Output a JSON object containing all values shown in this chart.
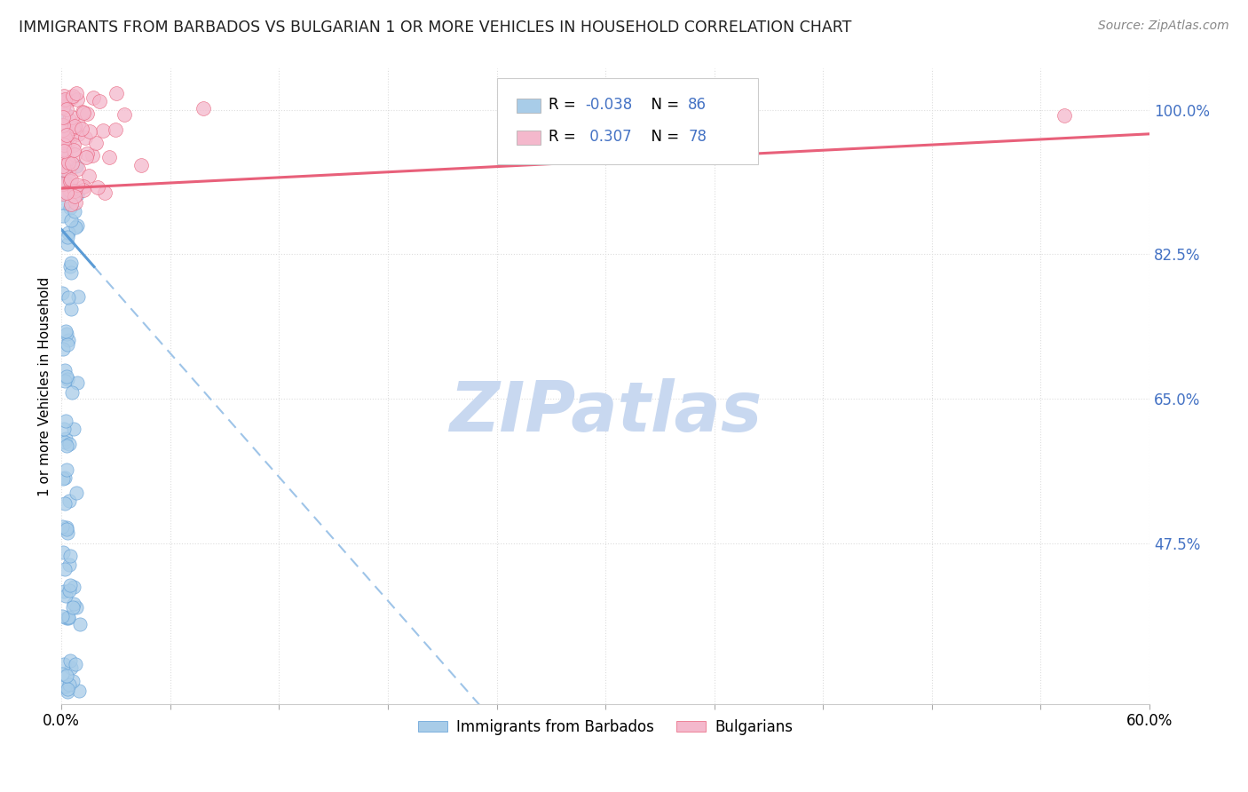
{
  "title": "IMMIGRANTS FROM BARBADOS VS BULGARIAN 1 OR MORE VEHICLES IN HOUSEHOLD CORRELATION CHART",
  "source": "Source: ZipAtlas.com",
  "ylabel": "1 or more Vehicles in Household",
  "xlabel_barbados": "Immigrants from Barbados",
  "xlabel_bulgarians": "Bulgarians",
  "xlim": [
    0.0,
    0.6
  ],
  "ylim": [
    0.28,
    1.05
  ],
  "yticks": [
    0.475,
    0.65,
    0.825,
    1.0
  ],
  "ytick_labels": [
    "47.5%",
    "65.0%",
    "82.5%",
    "100.0%"
  ],
  "xtick_positions": [
    0.0,
    0.06,
    0.12,
    0.18,
    0.24,
    0.3,
    0.36,
    0.42,
    0.48,
    0.54,
    0.6
  ],
  "xtick_labels_shown": [
    "0.0%",
    "",
    "",
    "",
    "",
    "",
    "",
    "",
    "",
    "",
    "60.0%"
  ],
  "barbados_R": -0.038,
  "barbados_N": 86,
  "bulgarians_R": 0.307,
  "bulgarians_N": 78,
  "barbados_color": "#a8cce8",
  "bulgarians_color": "#f4b8cc",
  "barbados_trend_color": "#5b9bd5",
  "bulgarians_trend_color": "#e8607a",
  "dashed_line_color": "#9ec4e8",
  "watermark_color": "#c8d8f0",
  "background_color": "#ffffff",
  "grid_color": "#dddddd",
  "legend_R_color": "#4472c4",
  "right_axis_color": "#4472c4"
}
